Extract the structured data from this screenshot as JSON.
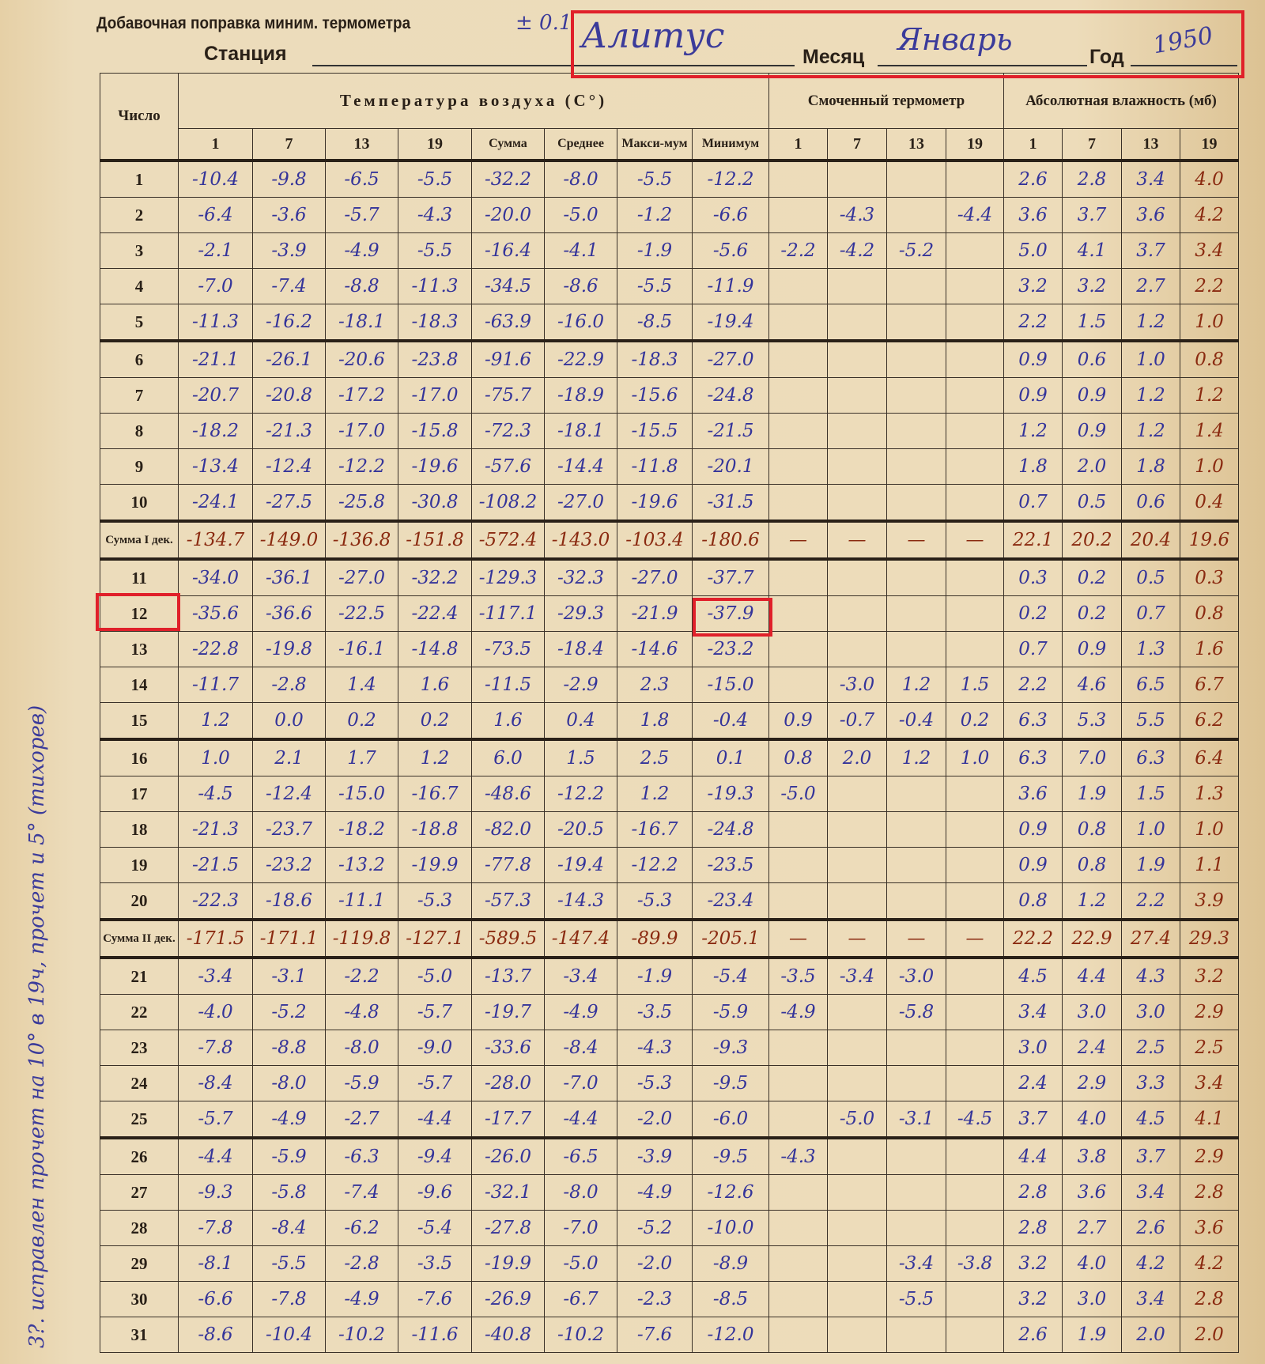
{
  "header": {
    "correction_label": "Добавочная поправка миним. термометра",
    "correction_value": "± 0.1",
    "station_label": "Станция",
    "station_value": "Алитус",
    "month_label": "Месяц",
    "month_value": "Январь",
    "year_label": "Год",
    "year_value": "1950"
  },
  "margin_note": "3?. исправлен прочет на 10° в 19ч, прочет и 5° (тихорев)",
  "highlight_color": "#e0202a",
  "columns": {
    "day": "Число",
    "temp_group": "Температура воздуха (C°)",
    "wet_group": "Смоченный термометр",
    "abs_group": "Абсолютная влажность (мб)",
    "temp": [
      "1",
      "7",
      "13",
      "19",
      "Сумма",
      "Среднее",
      "Макси-мум",
      "Минимум"
    ],
    "wet": [
      "1",
      "7",
      "13",
      "19"
    ],
    "abs": [
      "1",
      "7",
      "13",
      "19"
    ]
  },
  "rows": [
    {
      "label": "1",
      "t": [
        "-10.4",
        "-9.8",
        "-6.5",
        "-5.5",
        "-32.2",
        "-8.0",
        "-5.5",
        "-12.2"
      ],
      "w": [
        "",
        "",
        "",
        ""
      ],
      "a": [
        "2.6",
        "2.8",
        "3.4",
        "4.0"
      ]
    },
    {
      "label": "2",
      "t": [
        "-6.4",
        "-3.6",
        "-5.7",
        "-4.3",
        "-20.0",
        "-5.0",
        "-1.2",
        "-6.6"
      ],
      "w": [
        "",
        "-4.3",
        "",
        "-4.4"
      ],
      "a": [
        "3.6",
        "3.7",
        "3.6",
        "4.2"
      ]
    },
    {
      "label": "3",
      "t": [
        "-2.1",
        "-3.9",
        "-4.9",
        "-5.5",
        "-16.4",
        "-4.1",
        "-1.9",
        "-5.6"
      ],
      "w": [
        "-2.2",
        "-4.2",
        "-5.2",
        ""
      ],
      "a": [
        "5.0",
        "4.1",
        "3.7",
        "3.4"
      ]
    },
    {
      "label": "4",
      "t": [
        "-7.0",
        "-7.4",
        "-8.8",
        "-11.3",
        "-34.5",
        "-8.6",
        "-5.5",
        "-11.9"
      ],
      "w": [
        "",
        "",
        "",
        ""
      ],
      "a": [
        "3.2",
        "3.2",
        "2.7",
        "2.2"
      ]
    },
    {
      "label": "5",
      "t": [
        "-11.3",
        "-16.2",
        "-18.1",
        "-18.3",
        "-63.9",
        "-16.0",
        "-8.5",
        "-19.4"
      ],
      "w": [
        "",
        "",
        "",
        ""
      ],
      "a": [
        "2.2",
        "1.5",
        "1.2",
        "1.0"
      ]
    },
    {
      "label": "6",
      "t": [
        "-21.1",
        "-26.1",
        "-20.6",
        "-23.8",
        "-91.6",
        "-22.9",
        "-18.3",
        "-27.0"
      ],
      "w": [
        "",
        "",
        "",
        ""
      ],
      "a": [
        "0.9",
        "0.6",
        "1.0",
        "0.8"
      ]
    },
    {
      "label": "7",
      "t": [
        "-20.7",
        "-20.8",
        "-17.2",
        "-17.0",
        "-75.7",
        "-18.9",
        "-15.6",
        "-24.8"
      ],
      "w": [
        "",
        "",
        "",
        ""
      ],
      "a": [
        "0.9",
        "0.9",
        "1.2",
        "1.2"
      ]
    },
    {
      "label": "8",
      "t": [
        "-18.2",
        "-21.3",
        "-17.0",
        "-15.8",
        "-72.3",
        "-18.1",
        "-15.5",
        "-21.5"
      ],
      "w": [
        "",
        "",
        "",
        ""
      ],
      "a": [
        "1.2",
        "0.9",
        "1.2",
        "1.4"
      ]
    },
    {
      "label": "9",
      "t": [
        "-13.4",
        "-12.4",
        "-12.2",
        "-19.6",
        "-57.6",
        "-14.4",
        "-11.8",
        "-20.1"
      ],
      "w": [
        "",
        "",
        "",
        ""
      ],
      "a": [
        "1.8",
        "2.0",
        "1.8",
        "1.0"
      ]
    },
    {
      "label": "10",
      "t": [
        "-24.1",
        "-27.5",
        "-25.8",
        "-30.8",
        "-108.2",
        "-27.0",
        "-19.6",
        "-31.5"
      ],
      "w": [
        "",
        "",
        "",
        ""
      ],
      "a": [
        "0.7",
        "0.5",
        "0.6",
        "0.4"
      ]
    },
    {
      "label": "Сумма I дек.",
      "sum": true,
      "t": [
        "-134.7",
        "-149.0",
        "-136.8",
        "-151.8",
        "-572.4",
        "-143.0",
        "-103.4",
        "-180.6"
      ],
      "w": [
        "—",
        "—",
        "—",
        "—"
      ],
      "a": [
        "22.1",
        "20.2",
        "20.4",
        "19.6"
      ]
    },
    {
      "label": "11",
      "t": [
        "-34.0",
        "-36.1",
        "-27.0",
        "-32.2",
        "-129.3",
        "-32.3",
        "-27.0",
        "-37.7"
      ],
      "w": [
        "",
        "",
        "",
        ""
      ],
      "a": [
        "0.3",
        "0.2",
        "0.5",
        "0.3"
      ]
    },
    {
      "label": "12",
      "t": [
        "-35.6",
        "-36.6",
        "-22.5",
        "-22.4",
        "-117.1",
        "-29.3",
        "-21.9",
        "-37.9"
      ],
      "w": [
        "",
        "",
        "",
        ""
      ],
      "a": [
        "0.2",
        "0.2",
        "0.7",
        "0.8"
      ]
    },
    {
      "label": "13",
      "t": [
        "-22.8",
        "-19.8",
        "-16.1",
        "-14.8",
        "-73.5",
        "-18.4",
        "-14.6",
        "-23.2"
      ],
      "w": [
        "",
        "",
        "",
        ""
      ],
      "a": [
        "0.7",
        "0.9",
        "1.3",
        "1.6"
      ]
    },
    {
      "label": "14",
      "t": [
        "-11.7",
        "-2.8",
        "1.4",
        "1.6",
        "-11.5",
        "-2.9",
        "2.3",
        "-15.0"
      ],
      "w": [
        "",
        "-3.0",
        "1.2",
        "1.5"
      ],
      "a": [
        "2.2",
        "4.6",
        "6.5",
        "6.7"
      ]
    },
    {
      "label": "15",
      "t": [
        "1.2",
        "0.0",
        "0.2",
        "0.2",
        "1.6",
        "0.4",
        "1.8",
        "-0.4"
      ],
      "w": [
        "0.9",
        "-0.7",
        "-0.4",
        "0.2"
      ],
      "a": [
        "6.3",
        "5.3",
        "5.5",
        "6.2"
      ]
    },
    {
      "label": "16",
      "t": [
        "1.0",
        "2.1",
        "1.7",
        "1.2",
        "6.0",
        "1.5",
        "2.5",
        "0.1"
      ],
      "w": [
        "0.8",
        "2.0",
        "1.2",
        "1.0"
      ],
      "a": [
        "6.3",
        "7.0",
        "6.3",
        "6.4"
      ]
    },
    {
      "label": "17",
      "t": [
        "-4.5",
        "-12.4",
        "-15.0",
        "-16.7",
        "-48.6",
        "-12.2",
        "1.2",
        "-19.3"
      ],
      "w": [
        "-5.0",
        "",
        "",
        ""
      ],
      "a": [
        "3.6",
        "1.9",
        "1.5",
        "1.3"
      ]
    },
    {
      "label": "18",
      "t": [
        "-21.3",
        "-23.7",
        "-18.2",
        "-18.8",
        "-82.0",
        "-20.5",
        "-16.7",
        "-24.8"
      ],
      "w": [
        "",
        "",
        "",
        ""
      ],
      "a": [
        "0.9",
        "0.8",
        "1.0",
        "1.0"
      ]
    },
    {
      "label": "19",
      "t": [
        "-21.5",
        "-23.2",
        "-13.2",
        "-19.9",
        "-77.8",
        "-19.4",
        "-12.2",
        "-23.5"
      ],
      "w": [
        "",
        "",
        "",
        ""
      ],
      "a": [
        "0.9",
        "0.8",
        "1.9",
        "1.1"
      ]
    },
    {
      "label": "20",
      "t": [
        "-22.3",
        "-18.6",
        "-11.1",
        "-5.3",
        "-57.3",
        "-14.3",
        "-5.3",
        "-23.4"
      ],
      "w": [
        "",
        "",
        "",
        ""
      ],
      "a": [
        "0.8",
        "1.2",
        "2.2",
        "3.9"
      ]
    },
    {
      "label": "Сумма II дек.",
      "sum": true,
      "t": [
        "-171.5",
        "-171.1",
        "-119.8",
        "-127.1",
        "-589.5",
        "-147.4",
        "-89.9",
        "-205.1"
      ],
      "w": [
        "—",
        "—",
        "—",
        "—"
      ],
      "a": [
        "22.2",
        "22.9",
        "27.4",
        "29.3"
      ]
    },
    {
      "label": "21",
      "t": [
        "-3.4",
        "-3.1",
        "-2.2",
        "-5.0",
        "-13.7",
        "-3.4",
        "-1.9",
        "-5.4"
      ],
      "w": [
        "-3.5",
        "-3.4",
        "-3.0",
        ""
      ],
      "a": [
        "4.5",
        "4.4",
        "4.3",
        "3.2"
      ]
    },
    {
      "label": "22",
      "t": [
        "-4.0",
        "-5.2",
        "-4.8",
        "-5.7",
        "-19.7",
        "-4.9",
        "-3.5",
        "-5.9"
      ],
      "w": [
        "-4.9",
        "",
        "-5.8",
        ""
      ],
      "a": [
        "3.4",
        "3.0",
        "3.0",
        "2.9"
      ]
    },
    {
      "label": "23",
      "t": [
        "-7.8",
        "-8.8",
        "-8.0",
        "-9.0",
        "-33.6",
        "-8.4",
        "-4.3",
        "-9.3"
      ],
      "w": [
        "",
        "",
        "",
        ""
      ],
      "a": [
        "3.0",
        "2.4",
        "2.5",
        "2.5"
      ]
    },
    {
      "label": "24",
      "t": [
        "-8.4",
        "-8.0",
        "-5.9",
        "-5.7",
        "-28.0",
        "-7.0",
        "-5.3",
        "-9.5"
      ],
      "w": [
        "",
        "",
        "",
        ""
      ],
      "a": [
        "2.4",
        "2.9",
        "3.3",
        "3.4"
      ]
    },
    {
      "label": "25",
      "t": [
        "-5.7",
        "-4.9",
        "-2.7",
        "-4.4",
        "-17.7",
        "-4.4",
        "-2.0",
        "-6.0"
      ],
      "w": [
        "",
        "-5.0",
        "-3.1",
        "-4.5"
      ],
      "a": [
        "3.7",
        "4.0",
        "4.5",
        "4.1"
      ]
    },
    {
      "label": "26",
      "t": [
        "-4.4",
        "-5.9",
        "-6.3",
        "-9.4",
        "-26.0",
        "-6.5",
        "-3.9",
        "-9.5"
      ],
      "w": [
        "-4.3",
        "",
        "",
        ""
      ],
      "a": [
        "4.4",
        "3.8",
        "3.7",
        "2.9"
      ]
    },
    {
      "label": "27",
      "t": [
        "-9.3",
        "-5.8",
        "-7.4",
        "-9.6",
        "-32.1",
        "-8.0",
        "-4.9",
        "-12.6"
      ],
      "w": [
        "",
        "",
        "",
        ""
      ],
      "a": [
        "2.8",
        "3.6",
        "3.4",
        "2.8"
      ]
    },
    {
      "label": "28",
      "t": [
        "-7.8",
        "-8.4",
        "-6.2",
        "-5.4",
        "-27.8",
        "-7.0",
        "-5.2",
        "-10.0"
      ],
      "w": [
        "",
        "",
        "",
        ""
      ],
      "a": [
        "2.8",
        "2.7",
        "2.6",
        "3.6"
      ]
    },
    {
      "label": "29",
      "t": [
        "-8.1",
        "-5.5",
        "-2.8",
        "-3.5",
        "-19.9",
        "-5.0",
        "-2.0",
        "-8.9"
      ],
      "w": [
        "",
        "",
        "-3.4",
        "-3.8"
      ],
      "a": [
        "3.2",
        "4.0",
        "4.2",
        "4.2"
      ]
    },
    {
      "label": "30",
      "t": [
        "-6.6",
        "-7.8",
        "-4.9",
        "-7.6",
        "-26.9",
        "-6.7",
        "-2.3",
        "-8.5"
      ],
      "w": [
        "",
        "",
        "-5.5",
        ""
      ],
      "a": [
        "3.2",
        "3.0",
        "3.4",
        "2.8"
      ]
    },
    {
      "label": "31",
      "t": [
        "-8.6",
        "-10.4",
        "-10.2",
        "-11.6",
        "-40.8",
        "-10.2",
        "-7.6",
        "-12.0"
      ],
      "w": [
        "",
        "",
        "",
        ""
      ],
      "a": [
        "2.6",
        "1.9",
        "2.0",
        "2.0"
      ]
    }
  ]
}
